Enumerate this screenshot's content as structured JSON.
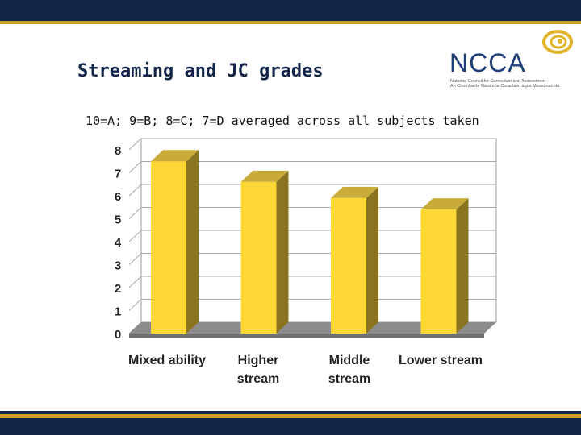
{
  "title": "Streaming and JC grades",
  "subtitle": "10=A; 9=B; 8=C; 7=D averaged across all subjects taken",
  "logo": {
    "word": "NCCA",
    "line1": "National Council for Curriculum and Assessment",
    "line2": "An Chomhairle Náisiúnta Curaclaim agus Measúnachta"
  },
  "colors": {
    "band": "#12264a",
    "accent": "#c9a227",
    "bar_front": "#fdd835",
    "bar_side": "#8a7420",
    "bar_top": "#c9ab3a"
  },
  "chart_data": {
    "type": "bar",
    "categories": [
      [
        "Mixed ability"
      ],
      [
        "Higher",
        "stream"
      ],
      [
        "Middle",
        "stream"
      ],
      [
        "Lower stream"
      ]
    ],
    "values": [
      7.5,
      6.6,
      5.9,
      5.4
    ],
    "title": "",
    "xlabel": "",
    "ylabel": "",
    "ylim": [
      0,
      8
    ],
    "yticks": [
      0,
      1,
      2,
      3,
      4,
      5,
      6,
      7,
      8
    ],
    "grid": true,
    "legend": "none"
  }
}
